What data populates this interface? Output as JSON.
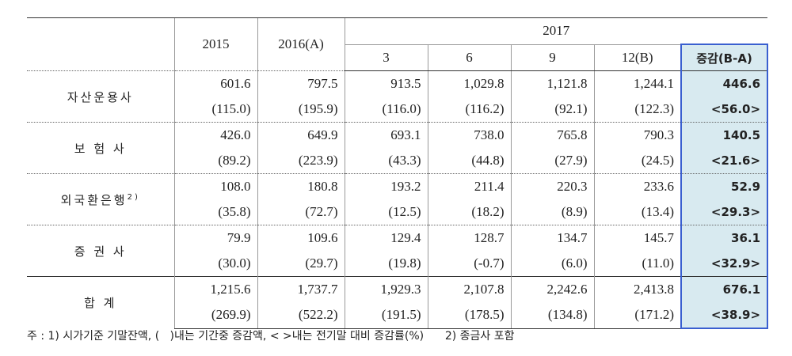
{
  "table": {
    "header": {
      "years": [
        "2015",
        "2016(A)",
        "2017"
      ],
      "months": [
        "3",
        "6",
        "9",
        "12(B)",
        "증감(B-A)"
      ]
    },
    "rows": [
      {
        "label": "자산운용사",
        "values": [
          "601.6",
          "797.5",
          "913.5",
          "1,029.8",
          "1,121.8",
          "1,244.1",
          "446.6"
        ],
        "changes": [
          "(115.0)",
          "(195.9)",
          "(116.0)",
          "(116.2)",
          "(92.1)",
          "(122.3)",
          "<56.0>"
        ]
      },
      {
        "label": "보 험 사",
        "values": [
          "426.0",
          "649.9",
          "693.1",
          "738.0",
          "765.8",
          "790.3",
          "140.5"
        ],
        "changes": [
          "(89.2)",
          "(223.9)",
          "(43.3)",
          "(44.8)",
          "(27.9)",
          "(24.5)",
          "<21.6>"
        ]
      },
      {
        "label": "외국환은행",
        "note": "2)",
        "values": [
          "108.0",
          "180.8",
          "193.2",
          "211.4",
          "220.3",
          "233.6",
          "52.9"
        ],
        "changes": [
          "(35.8)",
          "(72.7)",
          "(12.5)",
          "(18.2)",
          "(8.9)",
          "(13.4)",
          "<29.3>"
        ]
      },
      {
        "label": "증 권 사",
        "values": [
          "79.9",
          "109.6",
          "129.4",
          "128.7",
          "134.7",
          "145.7",
          "36.1"
        ],
        "changes": [
          "(30.0)",
          "(29.7)",
          "(19.8)",
          "(-0.7)",
          "(6.0)",
          "(11.0)",
          "<32.9>"
        ]
      },
      {
        "label": "합 계",
        "values": [
          "1,215.6",
          "1,737.7",
          "1,929.3",
          "2,107.8",
          "2,242.6",
          "2,413.8",
          "676.1"
        ],
        "changes": [
          "(269.9)",
          "(522.2)",
          "(191.5)",
          "(178.5)",
          "(134.8)",
          "(171.2)",
          "<38.9>"
        ]
      }
    ]
  },
  "footnote": {
    "note1": "주 : 1) 시가기준 기말잔액, (   )내는 기간중 증감액, < >내는 전기말 대비 증감률(%)",
    "note2": "2) 종금사 포함"
  }
}
